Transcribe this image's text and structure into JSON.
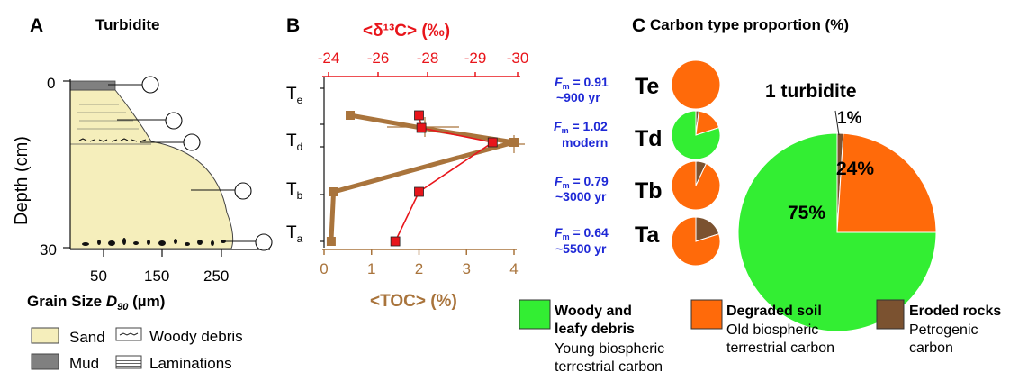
{
  "panel_a": {
    "letter": "A",
    "title": "Turbidite",
    "ylabel": "Depth (cm)",
    "xlabel_prefix": "Grain Size ",
    "xlabel_var": "D",
    "xlabel_sub": "90",
    "xlabel_unit": " (µm)",
    "yticks": [
      "0",
      "30"
    ],
    "xticks": [
      "50",
      "150",
      "250"
    ],
    "legend": {
      "sand": "Sand",
      "mud": "Mud",
      "woody": "Woody debris",
      "laminations": "Laminations"
    },
    "colors": {
      "sand": "#f5eebb",
      "mud": "#808080"
    }
  },
  "panel_b": {
    "letter": "B",
    "top_label": "<δ¹³C> (‰)",
    "bottom_label": "<TOC> (%)",
    "unit_labels": [
      {
        "main": "T",
        "sub": "e"
      },
      {
        "main": "T",
        "sub": "d"
      },
      {
        "main": "T",
        "sub": "b"
      },
      {
        "main": "T",
        "sub": "a"
      }
    ],
    "colors": {
      "d13c": "#e8151b",
      "toc": "#a9743c"
    }
  },
  "panel_c": {
    "letter": "C",
    "title": "Carbon type proportion (%)",
    "fm_rows": [
      {
        "prefix": "F",
        "sub": "m",
        "value": " = 0.91",
        "age": "~900 yr"
      },
      {
        "prefix": "F",
        "sub": "m",
        "value": " = 1.02",
        "age": "modern"
      },
      {
        "prefix": "F",
        "sub": "m",
        "value": " = 0.79",
        "age": "~3000 yr"
      },
      {
        "prefix": "F",
        "sub": "m",
        "value": " = 0.64",
        "age": "~5500 yr"
      }
    ],
    "big_title": "1 turbidite",
    "big_labels": {
      "petro": "1%",
      "soil": "24%",
      "woody": "75%"
    },
    "legend": [
      {
        "title1": "Woody and",
        "title2": "leafy debris",
        "desc1": "Young biospheric",
        "desc2": "terrestrial carbon",
        "color": "#33ee33"
      },
      {
        "title1": "Degraded soil",
        "title2": "",
        "desc1": "Old biospheric",
        "desc2": "terrestrial carbon",
        "color": "#ff6a0a"
      },
      {
        "title1": "Eroded rocks",
        "title2": "",
        "desc1": "Petrogenic",
        "desc2": "carbon",
        "color": "#7b5230"
      }
    ],
    "fm_color": "#1e28d6"
  },
  "chart_data": [
    {
      "type": "line",
      "panel": "B",
      "units": [
        "Te",
        "Td",
        "Td",
        "Tb",
        "Ta"
      ],
      "x_top_label": "<δ¹³C> (‰)",
      "x_top_ticks": [
        -24,
        -26,
        -28,
        -29,
        -30
      ],
      "x_bottom_label": "<TOC> (%)",
      "x_bottom_ticks": [
        0,
        1,
        2,
        3,
        4
      ],
      "x_bottom_range": [
        0,
        4
      ],
      "series": [
        {
          "name": "<δ¹³C>",
          "color": "#e8151b",
          "toc_scale_position": [
            2.0,
            2.05,
            3.55,
            2.0,
            1.5
          ]
        },
        {
          "name": "<TOC>",
          "color": "#a9743c",
          "values": [
            0.55,
            2.05,
            4.0,
            0.2,
            0.15
          ]
        }
      ]
    },
    {
      "type": "pie",
      "panel": "C",
      "pies": [
        {
          "unit": "Te",
          "values": {
            "woody": 0,
            "soil": 100,
            "petro": 0
          }
        },
        {
          "unit": "Td",
          "values": {
            "woody": 80,
            "soil": 18,
            "petro": 2
          }
        },
        {
          "unit": "Tb",
          "values": {
            "woody": 0,
            "soil": 93,
            "petro": 7
          }
        },
        {
          "unit": "Ta",
          "values": {
            "woody": 0,
            "soil": 80,
            "petro": 20
          }
        },
        {
          "unit": "1 turbidite",
          "values": {
            "woody": 75,
            "soil": 24,
            "petro": 1
          }
        }
      ]
    }
  ]
}
